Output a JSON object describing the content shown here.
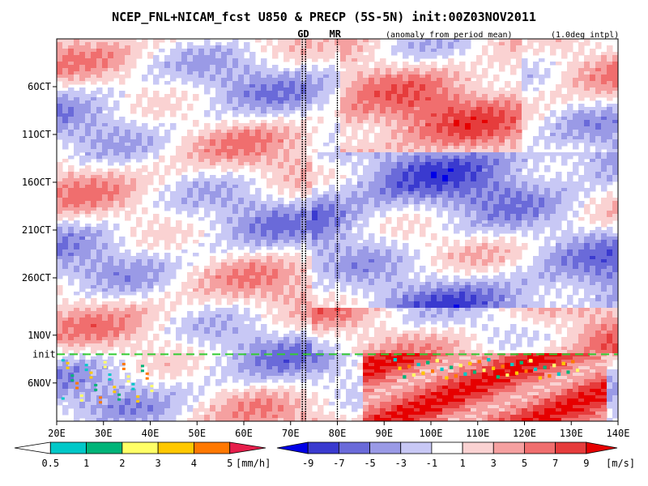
{
  "chart_data": {
    "type": "heatmap",
    "title": "NCEP_FNL+NICAM_fcst U850 & PRECP (5S-5N) init:00Z03NOV2011",
    "subtitle_left": "(anomaly from period mean)",
    "subtitle_right": "(1.0deg intpl)",
    "x_axis": {
      "ticks": [
        "20E",
        "30E",
        "40E",
        "50E",
        "60E",
        "70E",
        "80E",
        "90E",
        "100E",
        "110E",
        "120E",
        "130E",
        "140E"
      ],
      "range": [
        20,
        140
      ]
    },
    "y_axis": {
      "ticks": [
        "6OCT",
        "11OCT",
        "16OCT",
        "21OCT",
        "26OCT",
        "1NOV",
        "6NOV"
      ],
      "tick_day_offsets": [
        5,
        10,
        15,
        20,
        25,
        31,
        36
      ],
      "range_day_offsets": [
        0,
        40
      ]
    },
    "markers": {
      "gd_label": "GD",
      "gd_lon": [
        72.5,
        73.2
      ],
      "mr_label": "MR",
      "mr_lon": 80,
      "init_label": "init",
      "init_day_offset": 33
    },
    "legend_precip": {
      "labels": [
        "0.5",
        "1",
        "2",
        "3",
        "4",
        "5"
      ],
      "unit": "[mm/h]",
      "colors": [
        "#ffffff",
        "#00c8c8",
        "#00b478",
        "#ffff66",
        "#ffc800",
        "#ff7800",
        "#e61e4b"
      ]
    },
    "legend_wind": {
      "labels": [
        "-9",
        "-7",
        "-5",
        "-3",
        "-1",
        "1",
        "3",
        "5",
        "7",
        "9"
      ],
      "unit": "[m/s]",
      "colors": [
        "#0000e6",
        "#3a3acf",
        "#6a6ad9",
        "#9a9ae6",
        "#c8c8f5",
        "#ffffff",
        "#fad2d2",
        "#f5a0a0",
        "#f06e6e",
        "#e63c3c",
        "#e60000"
      ]
    }
  }
}
